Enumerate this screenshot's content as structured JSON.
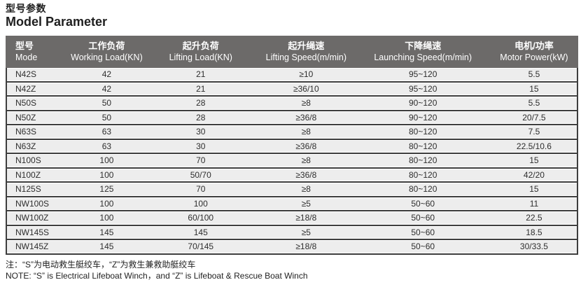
{
  "page": {
    "title_zh": "型号参数",
    "title_en": "Model Parameter"
  },
  "table": {
    "columns": [
      {
        "zh": "型号",
        "en": "Mode"
      },
      {
        "zh": "工作负荷",
        "en": "Working Load(KN)"
      },
      {
        "zh": "起升负荷",
        "en": "Lifting Load(KN)"
      },
      {
        "zh": "起升绳速",
        "en": "Lifting Speed(m/min)"
      },
      {
        "zh": "下降绳速",
        "en": "Launching Speed(m/min)"
      },
      {
        "zh": "电机/功率",
        "en": "Motor Power(kW)"
      }
    ],
    "rows": [
      [
        "N42S",
        "42",
        "21",
        "≥10",
        "95~120",
        "5.5"
      ],
      [
        "N42Z",
        "42",
        "21",
        "≥36/10",
        "95~120",
        "15"
      ],
      [
        "N50S",
        "50",
        "28",
        "≥8",
        "90~120",
        "5.5"
      ],
      [
        "N50Z",
        "50",
        "28",
        "≥36/8",
        "90~120",
        "20/7.5"
      ],
      [
        "N63S",
        "63",
        "30",
        "≥8",
        "80~120",
        "7.5"
      ],
      [
        "N63Z",
        "63",
        "30",
        "≥36/8",
        "80~120",
        "22.5/10.6"
      ],
      [
        "N100S",
        "100",
        "70",
        "≥8",
        "80~120",
        "15"
      ],
      [
        "N100Z",
        "100",
        "50/70",
        "≥36/8",
        "80~120",
        "42/20"
      ],
      [
        "N125S",
        "125",
        "70",
        "≥8",
        "80~120",
        "15"
      ],
      [
        "NW100S",
        "100",
        "100",
        "≥5",
        "50~60",
        "11"
      ],
      [
        "NW100Z",
        "100",
        "60/100",
        "≥18/8",
        "50~60",
        "22.5"
      ],
      [
        "NW145S",
        "145",
        "145",
        "≥5",
        "50~60",
        "18.5"
      ],
      [
        "NW145Z",
        "145",
        "70/145",
        "≥18/8",
        "50~60",
        "30/33.5"
      ]
    ]
  },
  "notes": {
    "zh": "注：“S”为电动救生艇绞车，“Z”为救生兼救助艇绞车",
    "en": "NOTE: “S” is Electrical Lifeboat Winch，and “Z” is Lifeboat & Rescue Boat Winch"
  },
  "colors": {
    "header_bg": "#6c6a69",
    "header_text": "#ffffff",
    "row_bg": "#ededed",
    "rule": "#3d3d3d",
    "text": "#1f1f1f"
  }
}
